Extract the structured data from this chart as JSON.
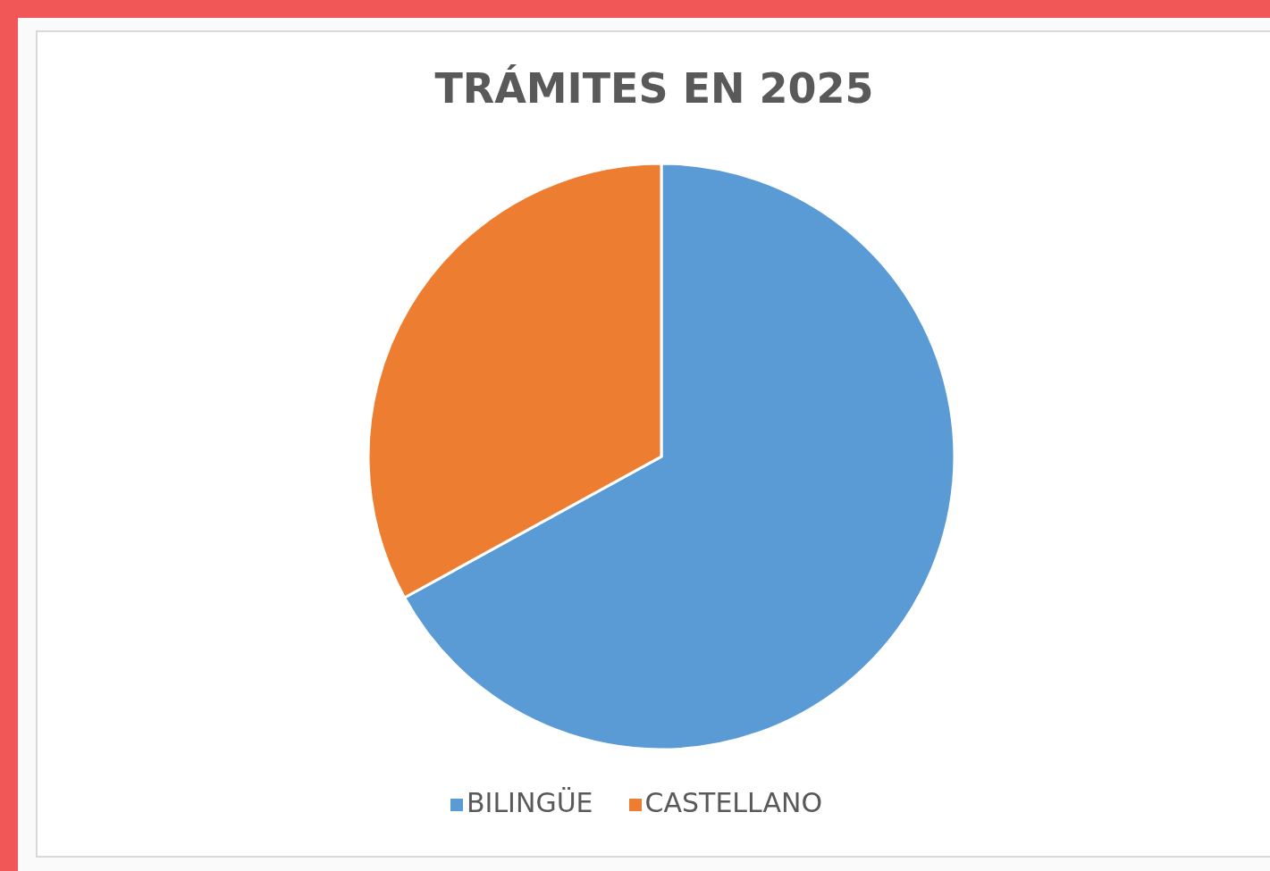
{
  "chart_data": {
    "type": "pie",
    "title": "TRÁMITES EN 2025",
    "categories": [
      "BILINGÜE",
      "CASTELLANO"
    ],
    "values": [
      67,
      33
    ],
    "colors": [
      "#5b9bd5",
      "#ed7d31"
    ],
    "legend": "bottom"
  }
}
